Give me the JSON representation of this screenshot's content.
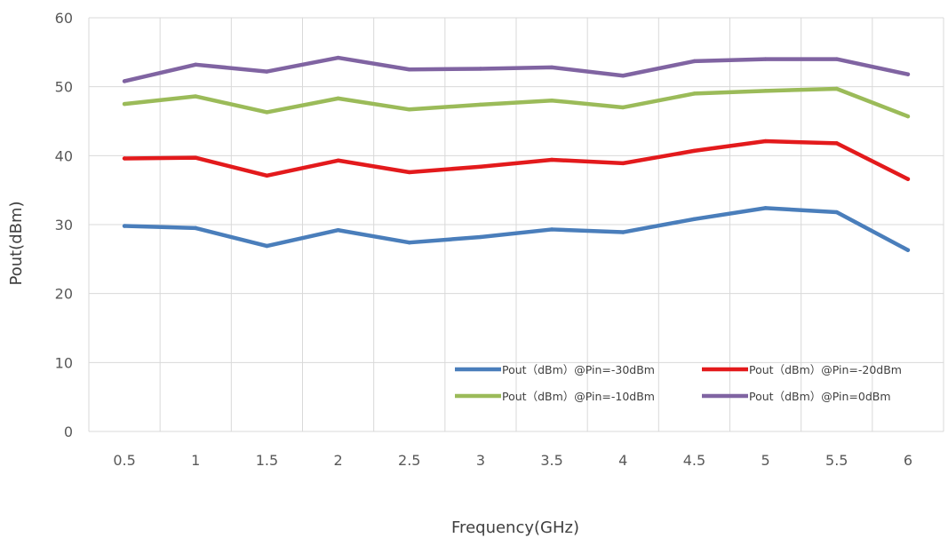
{
  "chart_data": {
    "type": "line",
    "title": "",
    "xlabel": "Frequency(GHz)",
    "ylabel": "Pout(dBm)",
    "categories": [
      "0.5",
      "1",
      "1.5",
      "2",
      "2.5",
      "3",
      "3.5",
      "4",
      "4.5",
      "5",
      "5.5",
      "6"
    ],
    "ylim": [
      0,
      60
    ],
    "yticks": [
      "0",
      "10",
      "20",
      "30",
      "40",
      "50",
      "60"
    ],
    "grid": true,
    "legend_position": "bottom-right",
    "series": [
      {
        "name": "Pout（dBm）@Pin=-30dBm",
        "color": "#4a7ebb",
        "values": [
          29.8,
          29.5,
          26.9,
          29.2,
          27.4,
          28.2,
          29.3,
          28.9,
          30.8,
          32.4,
          31.8,
          26.3
        ]
      },
      {
        "name": "Pout（dBm）@Pin=-20dBm",
        "color": "#e31a1c",
        "values": [
          39.6,
          39.7,
          37.1,
          39.3,
          37.6,
          38.4,
          39.4,
          38.9,
          40.7,
          42.1,
          41.8,
          36.6
        ]
      },
      {
        "name": "Pout（dBm）@Pin=-10dBm",
        "color": "#9bbb59",
        "values": [
          47.5,
          48.6,
          46.3,
          48.3,
          46.7,
          47.4,
          48.0,
          47.0,
          49.0,
          49.4,
          49.7,
          45.7
        ]
      },
      {
        "name": "Pout（dBm）@Pin=0dBm",
        "color": "#8064a2",
        "values": [
          50.8,
          53.2,
          52.2,
          54.2,
          52.5,
          52.6,
          52.8,
          51.6,
          53.7,
          54.0,
          54.0,
          51.8
        ]
      }
    ]
  }
}
